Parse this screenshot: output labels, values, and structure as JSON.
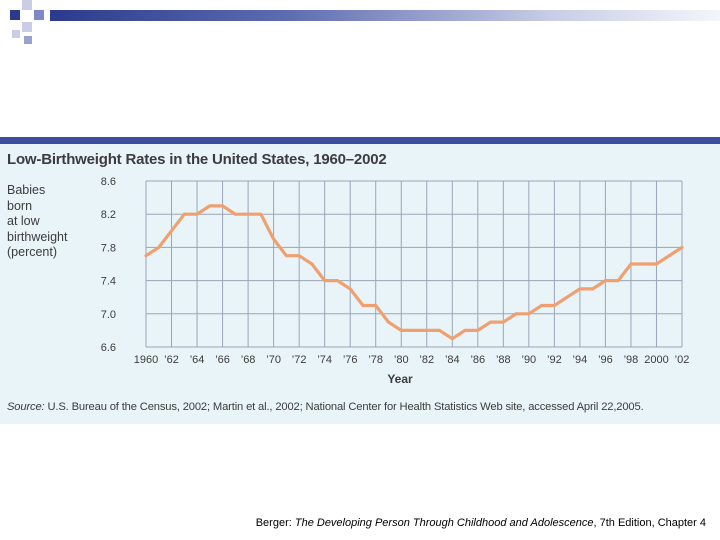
{
  "chart_data": {
    "type": "line",
    "title": "Low-Birthweight Rates in the United States, 1960–2002",
    "ylabel": "Babies born at low birthweight (percent)",
    "ylabel_lines": [
      "Babies",
      "born",
      "at low",
      "birthweight",
      "(percent)"
    ],
    "xlabel": "Year",
    "xlim": [
      1960,
      2002
    ],
    "ylim": [
      6.6,
      8.6
    ],
    "y_ticks": [
      6.6,
      7.0,
      7.4,
      7.8,
      8.2,
      8.6
    ],
    "y_tick_labels": [
      "6.6",
      "7.0",
      "7.4",
      "7.8",
      "8.2",
      "8.6"
    ],
    "x_ticks": [
      1960,
      1962,
      1964,
      1966,
      1968,
      1970,
      1972,
      1974,
      1976,
      1978,
      1980,
      1982,
      1984,
      1986,
      1988,
      1990,
      1992,
      1994,
      1996,
      1998,
      2000,
      2002
    ],
    "x_tick_labels": [
      "1960",
      "’62",
      "’64",
      "’66",
      "’68",
      "’70",
      "’72",
      "’74",
      "’76",
      "’78",
      "’80",
      "’82",
      "’84",
      "’86",
      "’88",
      "’90",
      "’92",
      "’94",
      "’96",
      "’98",
      "2000",
      "’02"
    ],
    "grid": true,
    "line_color": "#f0a070",
    "series": [
      {
        "name": "Low-birthweight rate",
        "x": [
          1960,
          1961,
          1962,
          1963,
          1964,
          1965,
          1966,
          1967,
          1968,
          1969,
          1970,
          1971,
          1972,
          1973,
          1974,
          1975,
          1976,
          1977,
          1978,
          1979,
          1980,
          1981,
          1982,
          1983,
          1984,
          1985,
          1986,
          1987,
          1988,
          1989,
          1990,
          1991,
          1992,
          1993,
          1994,
          1995,
          1996,
          1997,
          1998,
          1999,
          2000,
          2001,
          2002
        ],
        "values": [
          7.7,
          7.8,
          8.0,
          8.2,
          8.2,
          8.3,
          8.3,
          8.2,
          8.2,
          8.2,
          7.9,
          7.7,
          7.7,
          7.6,
          7.4,
          7.4,
          7.3,
          7.1,
          7.1,
          6.9,
          6.8,
          6.8,
          6.8,
          6.8,
          6.7,
          6.8,
          6.8,
          6.9,
          6.9,
          7.0,
          7.0,
          7.1,
          7.1,
          7.2,
          7.3,
          7.3,
          7.4,
          7.4,
          7.6,
          7.6,
          7.6,
          7.7,
          7.8
        ]
      }
    ]
  },
  "source": {
    "label": "Source:",
    "text": " U.S. Bureau of the Census, 2002; Martin et al., 2002; National Center for Health Statistics Web site, accessed April 22,2005."
  },
  "footer": {
    "prefix": "Berger: ",
    "book_title": "The Developing Person Through Childhood and Adolescence",
    "suffix": ", 7th Edition, Chapter 4"
  },
  "colors": {
    "header_dark": "#2b3a8c",
    "figure_band": "#3c4f9e",
    "figure_bg": "#e9f4f8",
    "grid": "#9aa4b8"
  }
}
